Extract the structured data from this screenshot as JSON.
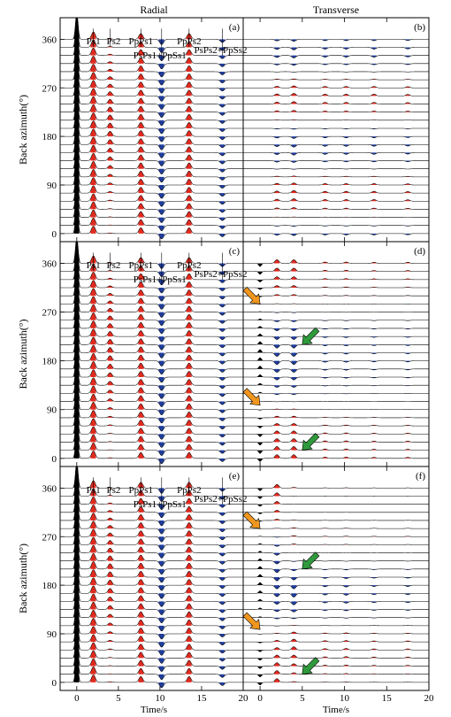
{
  "titles": {
    "left": "Radial",
    "right": "Transverse"
  },
  "ylabel": "Back azimuth(°)",
  "xlabel": "Time/s",
  "panel_letters": [
    "(a)",
    "(b)",
    "(c)",
    "(d)",
    "(e)",
    "(f)"
  ],
  "colors": {
    "positive": "#e02b20",
    "negative": "#1f3d9c",
    "direct": "#000000",
    "arrow_orange": "#f0961e",
    "arrow_green": "#2f9a3c"
  },
  "chart_data": {
    "type": "receiver-function-record-section",
    "xlabel": "Time/s",
    "ylabel": "Back azimuth(°)",
    "x_ticks": [
      0,
      5,
      10,
      15,
      20
    ],
    "y_ticks": [
      0,
      90,
      180,
      270,
      360
    ],
    "xlim": [
      -2,
      20
    ],
    "ylim": [
      -15,
      400
    ],
    "back_azimuths": [
      0,
      15,
      30,
      45,
      60,
      75,
      90,
      105,
      120,
      135,
      150,
      165,
      180,
      195,
      210,
      225,
      240,
      255,
      270,
      285,
      300,
      315,
      330,
      345,
      360
    ],
    "phase_labels": [
      {
        "text": "Ps1",
        "time": 2.0
      },
      {
        "text": "Ps2",
        "time": 4.0
      },
      {
        "text": "PpPs1",
        "time": 7.7
      },
      {
        "text": "PsPs1+PpSs1",
        "time": 10.2
      },
      {
        "text": "PpPs2",
        "time": 13.5
      },
      {
        "text": "PsPs2+PpSs2",
        "time": 17.5
      }
    ],
    "panels": [
      {
        "id": "a",
        "component": "radial",
        "phases": [
          {
            "name": "P",
            "time": 0.0,
            "amp": 1.0,
            "pattern": "constant"
          },
          {
            "name": "Ps1",
            "time": 2.0,
            "amp": 0.28,
            "pattern": "constant"
          },
          {
            "name": "Ps2",
            "time": 4.0,
            "amp": 0.2,
            "pattern": "ps2"
          },
          {
            "name": "PpPs1",
            "time": 7.7,
            "amp": 0.22,
            "pattern": "constant"
          },
          {
            "name": "PsPs1+PpSs1",
            "time": 10.2,
            "amp": -0.2,
            "pattern": "constant"
          },
          {
            "name": "PpPs2",
            "time": 13.5,
            "amp": 0.22,
            "pattern": "constant"
          },
          {
            "name": "PsPs2+PpSs2",
            "time": 17.5,
            "amp": -0.12,
            "pattern": "constant"
          }
        ]
      },
      {
        "id": "b",
        "component": "transverse",
        "phases": [
          {
            "name": "Ps1",
            "time": 2.0,
            "amp": 0.08,
            "pattern": "2theta"
          },
          {
            "name": "Ps2",
            "time": 4.0,
            "amp": 0.1,
            "pattern": "2theta"
          },
          {
            "name": "PpPs1",
            "time": 7.7,
            "amp": 0.07,
            "pattern": "2theta"
          },
          {
            "name": "PsPs1+PpSs1",
            "time": 10.2,
            "amp": 0.07,
            "pattern": "2theta"
          },
          {
            "name": "PpPs2",
            "time": 13.5,
            "amp": 0.07,
            "pattern": "2theta"
          },
          {
            "name": "PsPs2+PpSs2",
            "time": 17.5,
            "amp": 0.06,
            "pattern": "2theta"
          }
        ]
      },
      {
        "id": "c",
        "component": "radial",
        "phases": [
          {
            "name": "P",
            "time": 0.0,
            "amp": 1.0,
            "pattern": "constant"
          },
          {
            "name": "Ps1",
            "time": 2.0,
            "amp": 0.28,
            "pattern": "constant"
          },
          {
            "name": "Ps2",
            "time": 4.0,
            "amp": 0.2,
            "pattern": "ps2"
          },
          {
            "name": "PpPs1",
            "time": 7.7,
            "amp": 0.22,
            "pattern": "constant"
          },
          {
            "name": "PsPs1+PpSs1",
            "time": 10.2,
            "amp": -0.2,
            "pattern": "constant"
          },
          {
            "name": "PpPs2",
            "time": 13.5,
            "amp": 0.22,
            "pattern": "constant"
          },
          {
            "name": "PsPs2+PpSs2",
            "time": 17.5,
            "amp": -0.12,
            "pattern": "constant"
          }
        ]
      },
      {
        "id": "d",
        "component": "transverse",
        "phases": [
          {
            "name": "P",
            "time": 0.0,
            "amp": -0.12,
            "pattern": "1theta"
          },
          {
            "name": "Ps1",
            "time": 2.0,
            "amp": 0.14,
            "pattern": "1theta"
          },
          {
            "name": "Ps2",
            "time": 4.0,
            "amp": 0.14,
            "pattern": "1theta"
          },
          {
            "name": "PpPs1",
            "time": 7.7,
            "amp": 0.05,
            "pattern": "1theta"
          },
          {
            "name": "PsPs1+PpSs1",
            "time": 10.2,
            "amp": 0.05,
            "pattern": "1theta"
          },
          {
            "name": "PpPs2",
            "time": 13.5,
            "amp": 0.04,
            "pattern": "1theta"
          },
          {
            "name": "PsPs2+PpSs2",
            "time": 17.5,
            "amp": 0.04,
            "pattern": "1theta"
          }
        ]
      },
      {
        "id": "e",
        "component": "radial",
        "phases": [
          {
            "name": "P",
            "time": 0.0,
            "amp": 1.0,
            "pattern": "constant"
          },
          {
            "name": "Ps1",
            "time": 2.0,
            "amp": 0.28,
            "pattern": "constant"
          },
          {
            "name": "Ps2",
            "time": 4.0,
            "amp": 0.2,
            "pattern": "ps2"
          },
          {
            "name": "PpPs1",
            "time": 7.7,
            "amp": 0.22,
            "pattern": "constant"
          },
          {
            "name": "PsPs1+PpSs1",
            "time": 10.2,
            "amp": -0.2,
            "pattern": "constant"
          },
          {
            "name": "PpPs2",
            "time": 13.5,
            "amp": 0.22,
            "pattern": "constant"
          },
          {
            "name": "PsPs2+PpSs2",
            "time": 17.5,
            "amp": -0.12,
            "pattern": "constant"
          }
        ]
      },
      {
        "id": "f",
        "component": "transverse",
        "phases": [
          {
            "name": "P",
            "time": 0.0,
            "amp": -0.1,
            "pattern": "1theta"
          },
          {
            "name": "Ps1",
            "time": 2.0,
            "amp": 0.14,
            "pattern": "1theta"
          },
          {
            "name": "Ps2",
            "time": 4.0,
            "amp": 0.14,
            "pattern": "mixed"
          },
          {
            "name": "PpPs1",
            "time": 7.7,
            "amp": 0.06,
            "pattern": "mixed"
          },
          {
            "name": "PsPs1+PpSs1",
            "time": 10.2,
            "amp": 0.07,
            "pattern": "mixed"
          },
          {
            "name": "PpPs2",
            "time": 13.5,
            "amp": 0.05,
            "pattern": "mixed"
          },
          {
            "name": "PsPs2+PpSs2",
            "time": 17.5,
            "amp": 0.05,
            "pattern": "mixed"
          }
        ]
      }
    ],
    "arrows": [
      {
        "panel": "d",
        "color": "orange",
        "time": 0.0,
        "baz": 285
      },
      {
        "panel": "d",
        "color": "orange",
        "time": 0.0,
        "baz": 98
      },
      {
        "panel": "d",
        "color": "green",
        "time": 5.0,
        "baz": 210
      },
      {
        "panel": "d",
        "color": "green",
        "time": 5.0,
        "baz": 15
      },
      {
        "panel": "f",
        "color": "orange",
        "time": 0.0,
        "baz": 285
      },
      {
        "panel": "f",
        "color": "orange",
        "time": 0.0,
        "baz": 98
      },
      {
        "panel": "f",
        "color": "green",
        "time": 5.0,
        "baz": 210
      },
      {
        "panel": "f",
        "color": "green",
        "time": 5.0,
        "baz": 15
      }
    ]
  }
}
